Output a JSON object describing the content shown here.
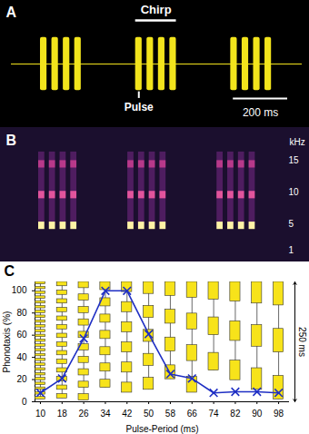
{
  "chart_data": [
    {
      "type": "oscillogram",
      "panel": "A",
      "xlim": [
        0,
        1070
      ],
      "chirps": [
        [
          107,
          149,
          191,
          233
        ],
        [
          457,
          499,
          541,
          583
        ],
        [
          807,
          849,
          891,
          933
        ]
      ],
      "pulse_duration_ms": 24,
      "color": "#f2e41c",
      "annotations": {
        "chirp": "Chirp",
        "pulse": "Pulse"
      },
      "scale_bar": {
        "value": 200,
        "label": "200 ms"
      }
    },
    {
      "type": "spectrogram",
      "panel": "B",
      "ylim": [
        0,
        19
      ],
      "yticks": [
        1,
        5,
        10,
        15
      ],
      "y_label": "kHz",
      "harmonics_khz": [
        4.8,
        9.6,
        14.4
      ],
      "colors": [
        "#fff3a6",
        "#e2549c",
        "#b8398a"
      ]
    },
    {
      "type": "line",
      "panel": "C",
      "x_label": "Pulse-Period (ms)",
      "y_label": "Phonotaxis (%)",
      "x": [
        10,
        18,
        26,
        34,
        42,
        50,
        58,
        66,
        74,
        82,
        90,
        98
      ],
      "values": [
        8,
        21,
        57,
        100,
        100,
        61,
        25,
        21,
        8,
        9,
        9,
        8
      ],
      "xlim": [
        8,
        102
      ],
      "xticks": [
        10,
        18,
        26,
        34,
        42,
        50,
        58,
        66,
        74,
        82,
        90,
        98
      ],
      "ylim": [
        0,
        108
      ],
      "yticks": [
        0,
        20,
        40,
        60,
        80,
        100
      ],
      "color": "#1f2fc4",
      "marker": "x",
      "pulse_durations_ms": [
        5,
        9,
        13,
        17,
        21,
        25,
        29,
        33,
        37,
        41,
        45,
        49
      ],
      "scale_bar": {
        "value": 250,
        "label": "250 ms"
      }
    }
  ]
}
